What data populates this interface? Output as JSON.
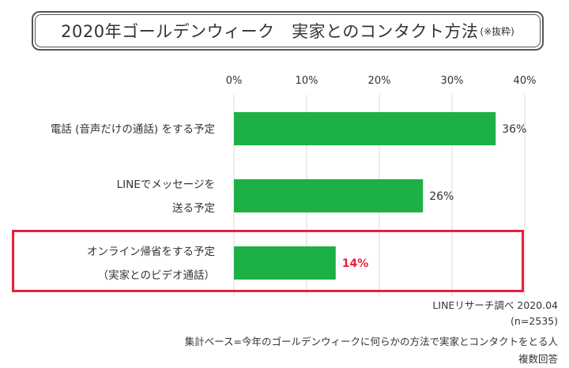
{
  "title": {
    "main": "2020年ゴールデンウィーク　実家とのコンタクト方法",
    "note": "(※抜粋)"
  },
  "chart_data": {
    "type": "bar",
    "orientation": "horizontal",
    "x_ticks": [
      "0%",
      "10%",
      "20%",
      "30%",
      "40%"
    ],
    "xlim": [
      0,
      40
    ],
    "categories": [
      [
        "電話 (音声だけの通話) をする予定"
      ],
      [
        "LINEでメッセージを",
        "送る予定"
      ],
      [
        "オンライン帰省をする予定",
        "（実家とのビデオ通話）"
      ]
    ],
    "values": [
      36,
      26,
      14
    ],
    "value_labels": [
      "36%",
      "26%",
      "14%"
    ],
    "highlighted_index": 2,
    "grid": true
  },
  "footer": {
    "source": "LINEリサーチ調べ 2020.04",
    "n": "(n=2535)",
    "base": "集計ベース=今年のゴールデンウィークに何らかの方法で実家とコンタクトをとる人",
    "answer_type": "複数回答"
  },
  "colors": {
    "bar": "#1db047",
    "highlight": "#e8203a",
    "grid": "#d9d9d9",
    "text": "#333333"
  }
}
